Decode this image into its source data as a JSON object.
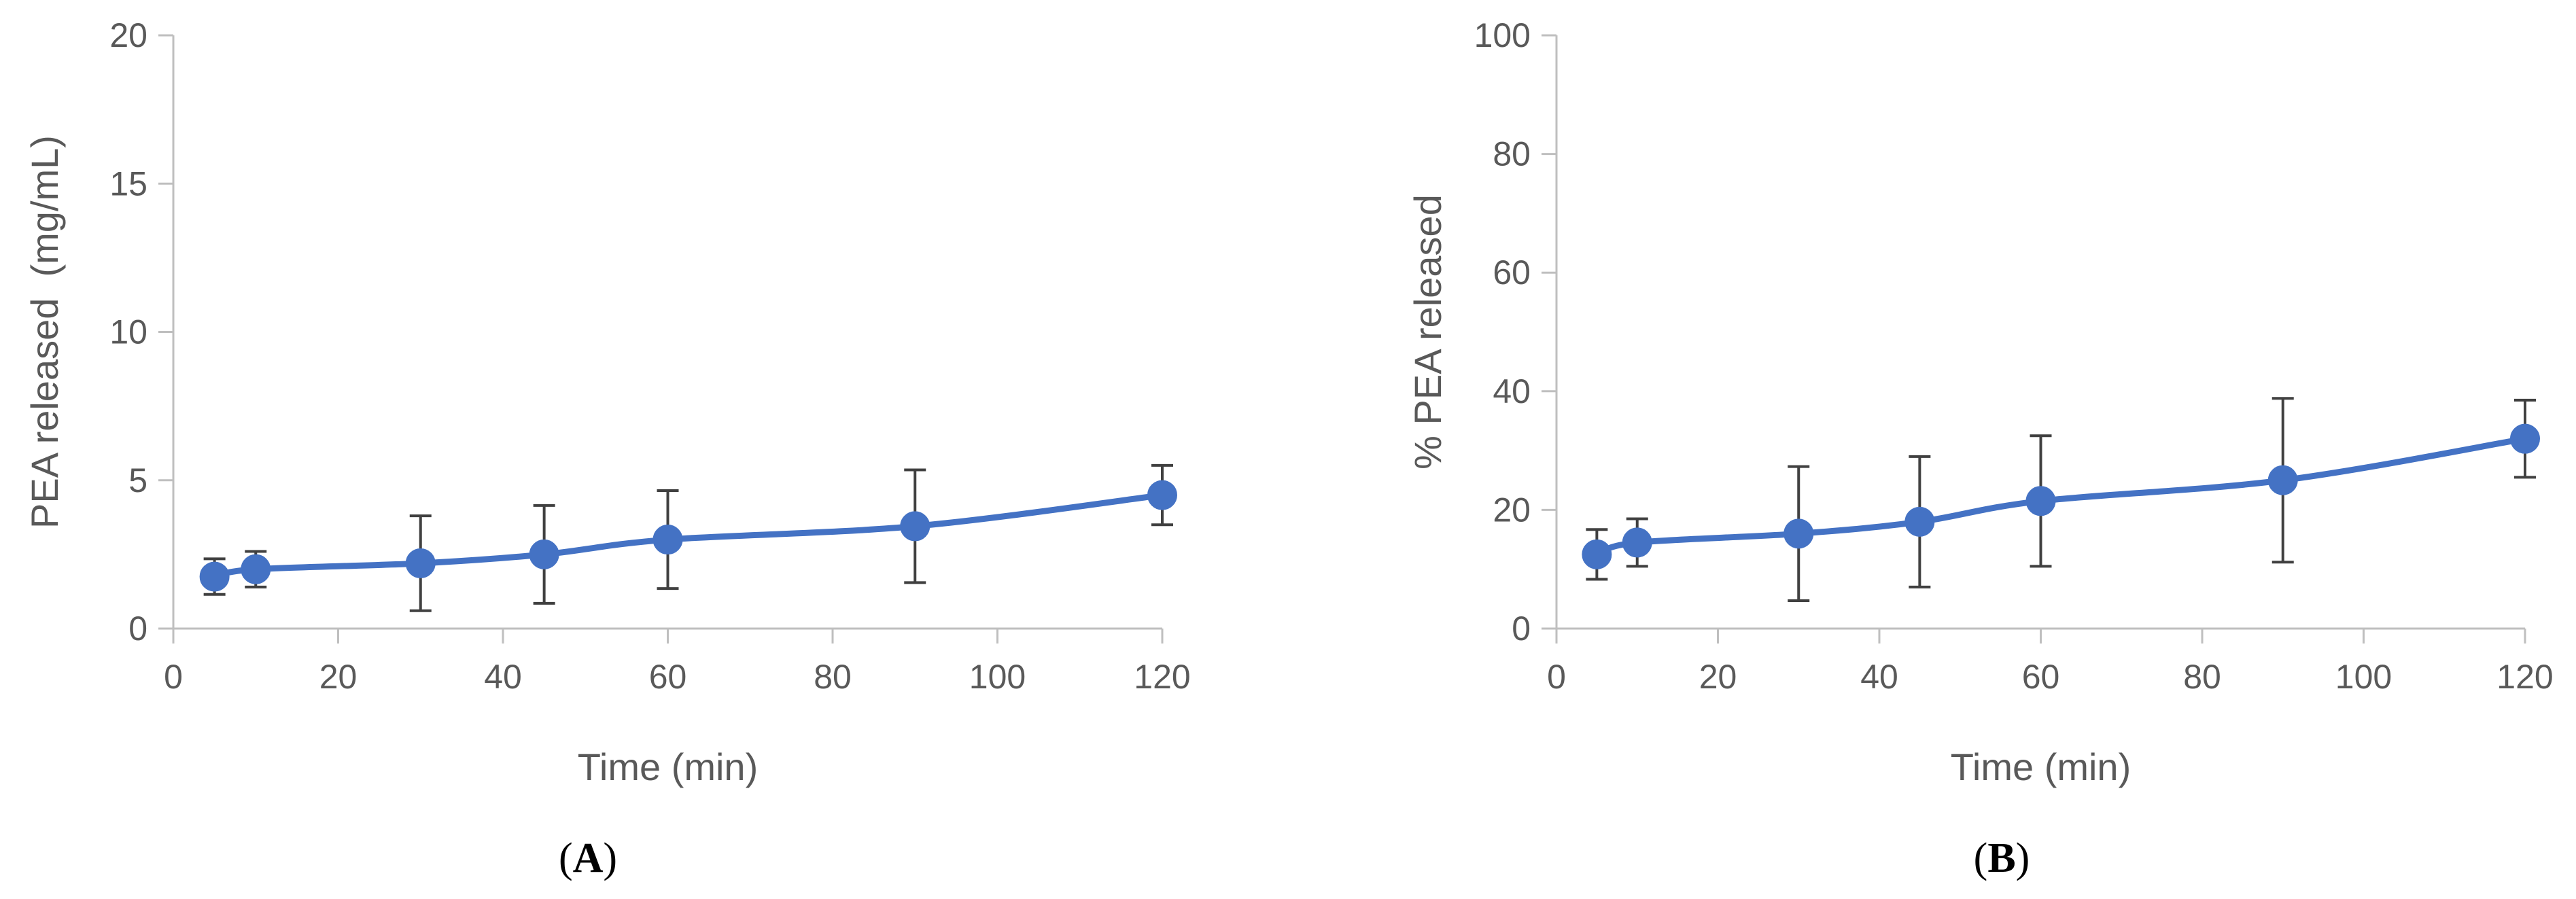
{
  "chart_data": [
    {
      "type": "line",
      "panel_label": "A",
      "xlabel": "Time (min)",
      "ylabel": "PEA released  (mg/mL)",
      "xlim": [
        0,
        120
      ],
      "ylim": [
        0,
        20
      ],
      "x_ticks": [
        0,
        20,
        40,
        60,
        80,
        100,
        120
      ],
      "y_ticks": [
        0,
        5,
        10,
        15,
        20
      ],
      "grid": false,
      "legend": "none",
      "series": [
        {
          "color": "#4472C4",
          "smooth": true,
          "x": [
            5,
            10,
            30,
            45,
            60,
            90,
            120
          ],
          "y": [
            1.75,
            2.0,
            2.2,
            2.5,
            3.0,
            3.45,
            4.5
          ],
          "error": [
            0.6,
            0.6,
            1.6,
            1.65,
            1.65,
            1.9,
            1.0
          ]
        }
      ]
    },
    {
      "type": "line",
      "panel_label": "B",
      "xlabel": "Time (min)",
      "ylabel": "% PEA released",
      "xlim": [
        0,
        120
      ],
      "ylim": [
        0,
        100
      ],
      "x_ticks": [
        0,
        20,
        40,
        60,
        80,
        100,
        120
      ],
      "y_ticks": [
        0,
        20,
        40,
        60,
        80,
        100
      ],
      "grid": false,
      "legend": "none",
      "series": [
        {
          "color": "#4472C4",
          "smooth": true,
          "x": [
            5,
            10,
            30,
            45,
            60,
            90,
            120
          ],
          "y": [
            12.5,
            14.5,
            16.0,
            18.0,
            21.5,
            25.0,
            32.0
          ],
          "error": [
            4.2,
            4.0,
            11.3,
            11.0,
            11.0,
            13.8,
            6.5
          ]
        }
      ]
    }
  ]
}
